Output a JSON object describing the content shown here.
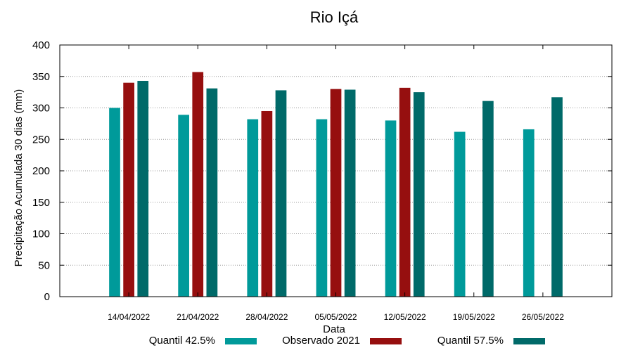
{
  "chart_data": {
    "type": "bar",
    "title": "Rio Içá",
    "xlabel": "Data",
    "ylabel": "Precipitação Acumulada 30 dias (mm)",
    "ylim": [
      0,
      400
    ],
    "yticks": [
      0,
      50,
      100,
      150,
      200,
      250,
      300,
      350,
      400
    ],
    "grid": true,
    "legend_position": "bottom",
    "categories": [
      "14/04/2022",
      "21/04/2022",
      "28/04/2022",
      "05/05/2022",
      "12/05/2022",
      "19/05/2022",
      "26/05/2022"
    ],
    "series": [
      {
        "name": "Quantil 42.5%",
        "color": "#009a9a",
        "values": [
          300,
          289,
          282,
          282,
          280,
          262,
          266
        ]
      },
      {
        "name": "Observado 2021",
        "color": "#960f0f",
        "values": [
          340,
          357,
          295,
          330,
          332,
          null,
          null
        ]
      },
      {
        "name": "Quantil 57.5%",
        "color": "#006a69",
        "values": [
          343,
          331,
          328,
          329,
          325,
          311,
          317
        ]
      }
    ]
  }
}
